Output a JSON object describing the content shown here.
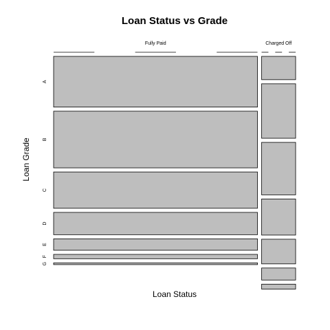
{
  "chart_data": {
    "type": "mosaic",
    "title": "Loan Status vs Grade",
    "xlabel": "Loan Status",
    "ylabel": "Loan Grade",
    "x_categories": [
      "Fully Paid",
      "Charged Off"
    ],
    "y_categories": [
      "A",
      "B",
      "C",
      "D",
      "E",
      "F",
      "G"
    ],
    "x_proportions": [
      0.857,
      0.143
    ],
    "conditional_proportions": {
      "Fully Paid": [
        0.257,
        0.287,
        0.184,
        0.113,
        0.058,
        0.022,
        0.009
      ],
      "Charged Off": [
        0.118,
        0.276,
        0.266,
        0.183,
        0.125,
        0.061,
        0.025
      ]
    },
    "tile_color": "#bebebe"
  }
}
